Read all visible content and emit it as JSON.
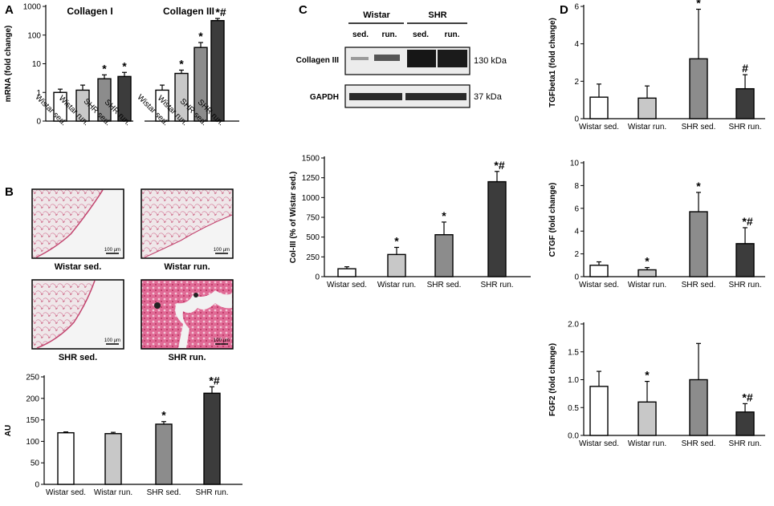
{
  "panels": {
    "A": "A",
    "B": "B",
    "C": "C",
    "D": "D"
  },
  "colors": {
    "wistar_sed": "#ffffff",
    "wistar_run": "#c8c8c8",
    "shr_sed": "#8c8c8c",
    "shr_run": "#3c3c3c",
    "stain_pink": "#d9407a"
  },
  "micrographs": {
    "labels": [
      "Wistar sed.",
      "Wistar run.",
      "SHR sed.",
      "SHR run."
    ],
    "scalebar": "100 µm"
  },
  "blot": {
    "groups": [
      "Wistar",
      "SHR"
    ],
    "lanes": [
      "sed.",
      "run.",
      "sed.",
      "run."
    ],
    "rows": [
      {
        "label": "Collagen III",
        "kda": "130 kDa"
      },
      {
        "label": "GAPDH",
        "kda": "37 kDa"
      }
    ]
  },
  "chart_data": [
    {
      "id": "A",
      "type": "bar",
      "ylabel": "mRNA (fold change)",
      "yscale": "log",
      "ylim": [
        0.1,
        1000
      ],
      "ticks": [
        "0",
        "1",
        "10",
        "100",
        "1000"
      ],
      "groups": [
        {
          "title": "Collagen I",
          "categories": [
            "Wistar sed.",
            "Wistar run.",
            "SHR sed.",
            "SHR run."
          ],
          "values": [
            1.0,
            1.2,
            3.0,
            3.6
          ],
          "errors": [
            0.3,
            0.6,
            1.1,
            1.4
          ],
          "marks": [
            "",
            "",
            "*",
            "*"
          ]
        },
        {
          "title": "Collagen III",
          "categories": [
            "Wistar sed.",
            "Wistar run.",
            "SHR sed.",
            "SHR run."
          ],
          "values": [
            1.2,
            4.6,
            37,
            320
          ],
          "errors": [
            0.6,
            1.4,
            18,
            60
          ],
          "marks": [
            "",
            "*",
            "*",
            "*#"
          ]
        }
      ]
    },
    {
      "id": "B",
      "type": "bar",
      "ylabel": "AU",
      "ylim": [
        0,
        250
      ],
      "ticks": [
        "0",
        "50",
        "100",
        "150",
        "200",
        "250"
      ],
      "categories": [
        "Wistar sed.",
        "Wistar run.",
        "SHR sed.",
        "SHR run."
      ],
      "values": [
        120,
        118,
        140,
        212
      ],
      "errors": [
        2,
        3,
        6,
        15
      ],
      "marks": [
        "",
        "",
        "*",
        "*#"
      ]
    },
    {
      "id": "C",
      "type": "bar",
      "ylabel": "Col-III (% of Wistar sed.)",
      "ylim": [
        0,
        1500
      ],
      "ticks": [
        "0",
        "250",
        "500",
        "750",
        "1000",
        "1250",
        "1500"
      ],
      "categories": [
        "Wistar sed.",
        "Wistar run.",
        "SHR sed.",
        "SHR run."
      ],
      "values": [
        100,
        280,
        530,
        1200
      ],
      "errors": [
        25,
        90,
        160,
        130
      ],
      "marks": [
        "",
        "*",
        "*",
        "*#"
      ]
    },
    {
      "id": "D1",
      "type": "bar",
      "ylabel": "TGFbeta1 (fold change)",
      "ylim": [
        0,
        6
      ],
      "ticks": [
        "0",
        "2",
        "4",
        "6"
      ],
      "categories": [
        "Wistar sed.",
        "Wistar run.",
        "SHR sed.",
        "SHR run."
      ],
      "values": [
        1.15,
        1.1,
        3.2,
        1.6
      ],
      "errors": [
        0.7,
        0.65,
        2.65,
        0.75
      ],
      "marks": [
        "",
        "",
        "*",
        "#"
      ]
    },
    {
      "id": "D2",
      "type": "bar",
      "ylabel": "CTGF (fold change)",
      "ylim": [
        0,
        10
      ],
      "ticks": [
        "0",
        "2",
        "4",
        "6",
        "8",
        "10"
      ],
      "categories": [
        "Wistar sed.",
        "Wistar run.",
        "SHR sed.",
        "SHR run."
      ],
      "values": [
        1.0,
        0.6,
        5.7,
        2.9
      ],
      "errors": [
        0.3,
        0.2,
        1.7,
        1.4
      ],
      "marks": [
        "",
        "*",
        "*",
        "*#"
      ]
    },
    {
      "id": "D3",
      "type": "bar",
      "ylabel": "FGF2 (fold change)",
      "ylim": [
        0,
        2.0
      ],
      "ticks": [
        "0.0",
        "0.5",
        "1.0",
        "1.5",
        "2.0"
      ],
      "categories": [
        "Wistar sed.",
        "Wistar run.",
        "SHR sed.",
        "SHR run."
      ],
      "values": [
        0.88,
        0.6,
        1.0,
        0.42
      ],
      "errors": [
        0.27,
        0.37,
        0.65,
        0.15
      ],
      "marks": [
        "",
        "*",
        "",
        "*#"
      ]
    }
  ]
}
